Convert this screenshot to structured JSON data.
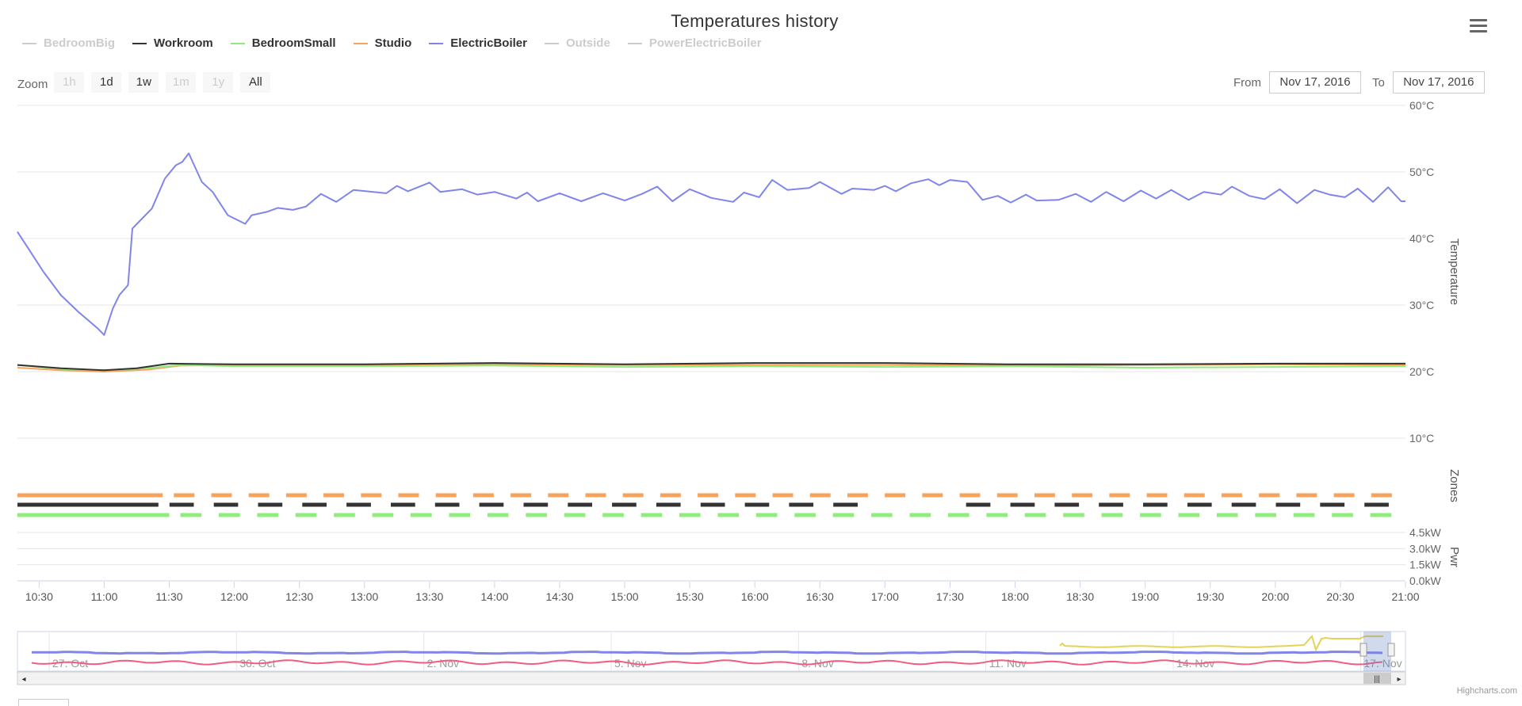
{
  "chart_data": {
    "type": "line",
    "title": "Temperatures history",
    "legend": [
      {
        "name": "BedroomBig",
        "color": "#cccccc",
        "visible": false
      },
      {
        "name": "Workroom",
        "color": "#333333",
        "visible": true
      },
      {
        "name": "BedroomSmall",
        "color": "#90ed7d",
        "visible": true
      },
      {
        "name": "Studio",
        "color": "#f7a35c",
        "visible": true
      },
      {
        "name": "ElectricBoiler",
        "color": "#8085e9",
        "visible": true
      },
      {
        "name": "Outside",
        "color": "#cccccc",
        "visible": false
      },
      {
        "name": "PowerElectricBoiler",
        "color": "#cccccc",
        "visible": false
      }
    ],
    "xlabel": "",
    "x_range": [
      "10:20",
      "21:00"
    ],
    "x_ticks": [
      "10:30",
      "11:00",
      "11:30",
      "12:00",
      "12:30",
      "13:00",
      "13:30",
      "14:00",
      "14:30",
      "15:00",
      "15:30",
      "16:00",
      "16:30",
      "17:00",
      "17:30",
      "18:00",
      "18:30",
      "19:00",
      "19:30",
      "20:00",
      "20:30",
      "21:00"
    ],
    "axes": [
      {
        "name": "Temperature",
        "ticks": [
          "60°C",
          "50°C",
          "40°C",
          "30°C",
          "20°C",
          "10°C"
        ],
        "ylim": [
          10,
          60
        ]
      },
      {
        "name": "Zones"
      },
      {
        "name": "Pwr",
        "ticks": [
          "4.5kW",
          "3.0kW",
          "1.5kW",
          "0.0kW"
        ],
        "ylim": [
          0,
          4.5
        ]
      }
    ],
    "series": [
      {
        "name": "ElectricBoiler",
        "axis": "Temperature",
        "points": [
          [
            "10:20",
            41.0
          ],
          [
            "10:25",
            38.5
          ],
          [
            "10:32",
            35
          ],
          [
            "10:40",
            31.5
          ],
          [
            "10:48",
            29
          ],
          [
            "10:57",
            26.5
          ],
          [
            "11:00",
            25.5
          ],
          [
            "11:04",
            29.5
          ],
          [
            "11:07",
            31.5
          ],
          [
            "11:11",
            33
          ],
          [
            "11:13",
            41.5
          ],
          [
            "11:16",
            42.5
          ],
          [
            "11:22",
            44.5
          ],
          [
            "11:28",
            49.0
          ],
          [
            "11:33",
            51.0
          ],
          [
            "11:36",
            51.5
          ],
          [
            "11:39",
            52.8
          ],
          [
            "11:45",
            48.5
          ],
          [
            "11:50",
            47.0
          ],
          [
            "11:57",
            43.5
          ],
          [
            "12:05",
            42.2
          ],
          [
            "12:08",
            43.5
          ],
          [
            "12:15",
            44.0
          ],
          [
            "12:20",
            44.6
          ],
          [
            "12:27",
            44.3
          ],
          [
            "12:33",
            44.8
          ],
          [
            "12:40",
            46.7
          ],
          [
            "12:47",
            45.5
          ],
          [
            "12:55",
            47.3
          ],
          [
            "13:10",
            46.8
          ],
          [
            "13:15",
            47.9
          ],
          [
            "13:20",
            47.1
          ],
          [
            "13:30",
            48.4
          ],
          [
            "13:35",
            47.0
          ],
          [
            "13:45",
            47.4
          ],
          [
            "13:52",
            46.6
          ],
          [
            "14:00",
            47.0
          ],
          [
            "14:10",
            46.0
          ],
          [
            "14:15",
            46.9
          ],
          [
            "14:20",
            45.6
          ],
          [
            "14:30",
            46.8
          ],
          [
            "14:40",
            45.6
          ],
          [
            "14:50",
            46.8
          ],
          [
            "15:00",
            45.7
          ],
          [
            "15:08",
            46.7
          ],
          [
            "15:15",
            47.8
          ],
          [
            "15:22",
            45.6
          ],
          [
            "15:30",
            47.4
          ],
          [
            "15:40",
            46.1
          ],
          [
            "15:50",
            45.5
          ],
          [
            "15:55",
            46.9
          ],
          [
            "16:02",
            46.2
          ],
          [
            "16:08",
            48.8
          ],
          [
            "16:15",
            47.3
          ],
          [
            "16:25",
            47.6
          ],
          [
            "16:30",
            48.5
          ],
          [
            "16:40",
            46.7
          ],
          [
            "16:45",
            47.5
          ],
          [
            "16:55",
            47.3
          ],
          [
            "17:00",
            47.9
          ],
          [
            "17:05",
            47.1
          ],
          [
            "17:12",
            48.3
          ],
          [
            "17:20",
            48.9
          ],
          [
            "17:25",
            48.0
          ],
          [
            "17:30",
            48.8
          ],
          [
            "17:38",
            48.5
          ],
          [
            "17:45",
            45.8
          ],
          [
            "17:52",
            46.4
          ],
          [
            "17:58",
            45.4
          ],
          [
            "18:05",
            46.6
          ],
          [
            "18:10",
            45.7
          ],
          [
            "18:20",
            45.8
          ],
          [
            "18:28",
            46.7
          ],
          [
            "18:35",
            45.5
          ],
          [
            "18:42",
            47.0
          ],
          [
            "18:50",
            45.6
          ],
          [
            "18:58",
            47.2
          ],
          [
            "19:05",
            46.0
          ],
          [
            "19:12",
            47.3
          ],
          [
            "19:20",
            45.8
          ],
          [
            "19:27",
            47.0
          ],
          [
            "19:35",
            46.6
          ],
          [
            "19:40",
            47.8
          ],
          [
            "19:48",
            46.4
          ],
          [
            "19:55",
            45.9
          ],
          [
            "20:02",
            47.4
          ],
          [
            "20:10",
            45.3
          ],
          [
            "20:18",
            47.3
          ],
          [
            "20:25",
            46.6
          ],
          [
            "20:32",
            46.2
          ],
          [
            "20:38",
            47.5
          ],
          [
            "20:45",
            45.5
          ],
          [
            "20:52",
            47.7
          ],
          [
            "20:58",
            45.6
          ],
          [
            "21:00",
            45.6
          ]
        ]
      },
      {
        "name": "Workroom",
        "axis": "Temperature",
        "points": [
          [
            "10:20",
            21.0
          ],
          [
            "10:40",
            20.5
          ],
          [
            "11:00",
            20.2
          ],
          [
            "11:15",
            20.5
          ],
          [
            "11:30",
            21.2
          ],
          [
            "12:00",
            21.1
          ],
          [
            "13:00",
            21.1
          ],
          [
            "14:00",
            21.3
          ],
          [
            "15:00",
            21.1
          ],
          [
            "16:00",
            21.3
          ],
          [
            "17:00",
            21.3
          ],
          [
            "18:00",
            21.1
          ],
          [
            "19:00",
            21.1
          ],
          [
            "20:00",
            21.2
          ],
          [
            "21:00",
            21.2
          ]
        ]
      },
      {
        "name": "BedroomSmall",
        "axis": "Temperature",
        "points": [
          [
            "10:20",
            21.0
          ],
          [
            "10:40",
            20.4
          ],
          [
            "11:00",
            20.2
          ],
          [
            "11:20",
            20.5
          ],
          [
            "11:35",
            21.0
          ],
          [
            "12:00",
            20.8
          ],
          [
            "13:00",
            20.8
          ],
          [
            "14:00",
            20.9
          ],
          [
            "15:00",
            20.7
          ],
          [
            "16:00",
            20.8
          ],
          [
            "17:00",
            20.7
          ],
          [
            "18:00",
            20.8
          ],
          [
            "19:00",
            20.6
          ],
          [
            "20:00",
            20.7
          ],
          [
            "21:00",
            20.8
          ]
        ]
      },
      {
        "name": "Studio",
        "axis": "Temperature",
        "points": [
          [
            "10:20",
            20.6
          ],
          [
            "10:40",
            20.2
          ],
          [
            "11:00",
            20.0
          ],
          [
            "11:20",
            20.3
          ],
          [
            "11:35",
            20.9
          ],
          [
            "12:00",
            21.0
          ],
          [
            "13:00",
            20.9
          ],
          [
            "14:00",
            21.1
          ],
          [
            "15:00",
            21.0
          ],
          [
            "16:00",
            21.0
          ],
          [
            "17:00",
            21.0
          ],
          [
            "18:00",
            20.9
          ],
          [
            "19:00",
            21.0
          ],
          [
            "20:00",
            21.1
          ],
          [
            "21:00",
            21.0
          ]
        ]
      }
    ],
    "zones": [
      {
        "name": "Studio",
        "color": "#f7a35c",
        "start": "10:20",
        "solid_until": "11:27",
        "segments": 33
      },
      {
        "name": "Workroom",
        "color": "#333333",
        "start": "10:20",
        "solid_until": "11:25",
        "segments": 28,
        "gap": [
          "17:05",
          "17:15"
        ]
      },
      {
        "name": "BedroomSmall",
        "color": "#90ed7d",
        "start": "10:20",
        "solid_until": "11:30",
        "segments": 32
      }
    ],
    "navigator": {
      "labels": [
        "27. Oct",
        "30. Oct",
        "2. Nov",
        "5. Nov",
        "8. Nov",
        "11. Nov",
        "14. Nov",
        "17. Nov"
      ],
      "series_colors": [
        "#8085e9",
        "#f15c80",
        "#e4d354"
      ]
    },
    "grid": true,
    "legend_position": "top-left"
  },
  "ui": {
    "menu_icon": "hamburger-menu-icon",
    "zoom": {
      "label": "Zoom",
      "buttons": [
        {
          "label": "1h",
          "enabled": false
        },
        {
          "label": "1d",
          "enabled": true
        },
        {
          "label": "1w",
          "enabled": true
        },
        {
          "label": "1m",
          "enabled": false
        },
        {
          "label": "1y",
          "enabled": false
        },
        {
          "label": "All",
          "enabled": true
        }
      ]
    },
    "range": {
      "from_label": "From",
      "from_value": "Nov 17, 2016",
      "to_label": "To",
      "to_value": "Nov 17, 2016"
    },
    "credit": "Highcharts.com"
  }
}
